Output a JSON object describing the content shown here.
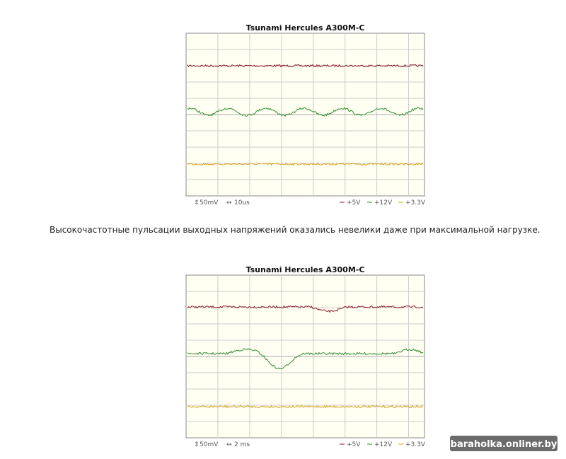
{
  "figures": [
    {
      "title": "Tsunami Hercules A300M-C",
      "volt_scale": "50mV",
      "time_scale": "10us",
      "legend": [
        "+5V",
        "+12V",
        "+3.3V"
      ]
    },
    {
      "title": "Tsunami Hercules A300M-C",
      "volt_scale": "50mV",
      "time_scale": "2 ms",
      "legend": [
        "+5V",
        "+12V",
        "+3.3V"
      ]
    }
  ],
  "paragraph": "Высокочастотные пульсации выходных напряжений оказались невелики даже при максимальной нагрузке.",
  "watermark": "baraholka.onliner.by"
}
